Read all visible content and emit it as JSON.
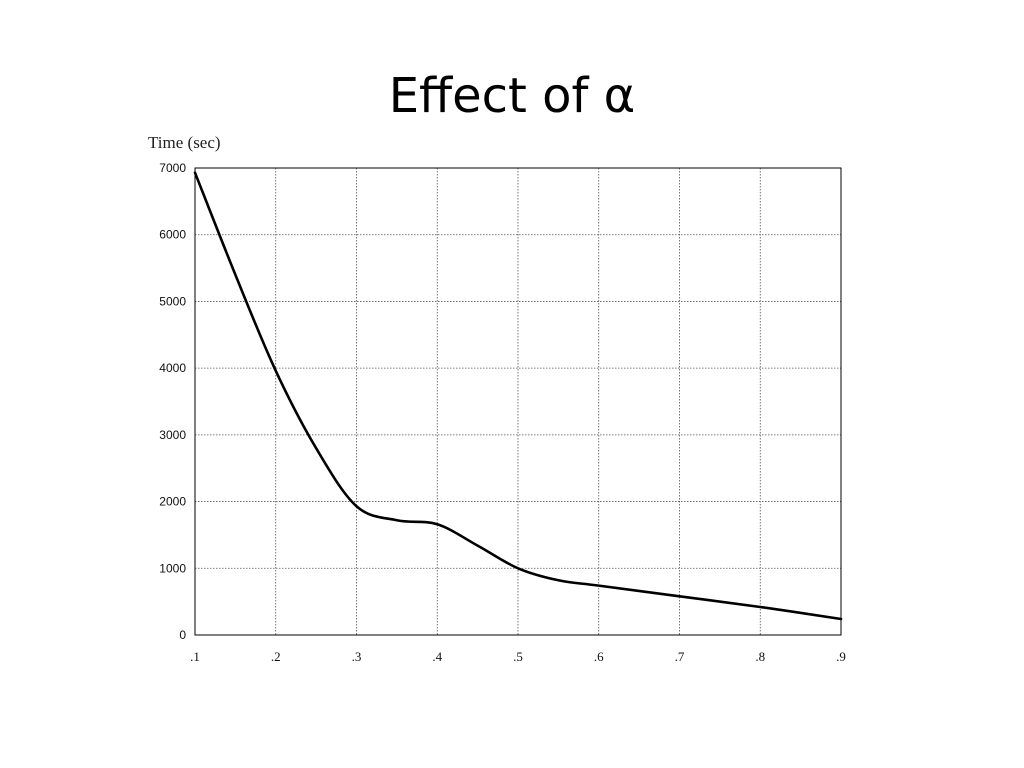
{
  "slide": {
    "title": "Effect of α"
  },
  "chart_data": {
    "type": "line",
    "title": "",
    "xlabel": "",
    "ylabel": "Time (sec)",
    "xlim": [
      0.1,
      0.9
    ],
    "ylim": [
      0,
      7000
    ],
    "x_ticks": [
      0.1,
      0.2,
      0.3,
      0.4,
      0.5,
      0.6,
      0.7,
      0.8,
      0.9
    ],
    "x_tick_labels": [
      ".1",
      ".2",
      ".3",
      ".4",
      ".5",
      ".6",
      ".7",
      ".8",
      ".9"
    ],
    "y_ticks": [
      0,
      1000,
      2000,
      3000,
      4000,
      5000,
      6000,
      7000
    ],
    "y_tick_labels": [
      "0",
      "1000",
      "2000",
      "3000",
      "4000",
      "5000",
      "6000",
      "7000"
    ],
    "grid": true,
    "legend": "none",
    "series": [
      {
        "color": "#000000",
        "x": [
          0.1,
          0.15,
          0.2,
          0.25,
          0.3,
          0.35,
          0.4,
          0.45,
          0.5,
          0.55,
          0.6,
          0.7,
          0.8,
          0.9
        ],
        "y": [
          6930,
          5400,
          3960,
          2800,
          1930,
          1720,
          1660,
          1340,
          1000,
          820,
          740,
          580,
          420,
          240
        ]
      }
    ]
  }
}
